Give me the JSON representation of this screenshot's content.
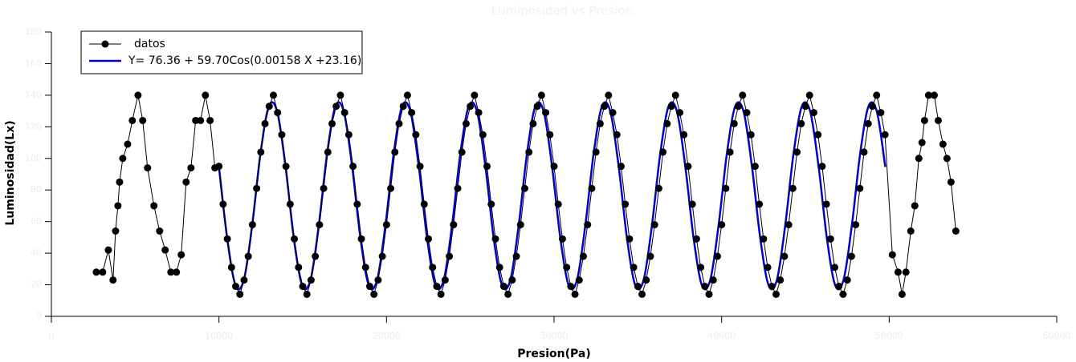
{
  "chart_data": {
    "type": "line",
    "title": "Luminosidad vs Presion",
    "x_label": "Presion(Pa)",
    "y_label": "Luminosidad(Lx)",
    "xlim": [
      0,
      60000
    ],
    "xticks": [
      0,
      10000,
      20000,
      30000,
      40000,
      50000,
      60000
    ],
    "ylim": [
      0,
      180
    ],
    "yticks": [
      0,
      20,
      40,
      60,
      80,
      100,
      120,
      140,
      160,
      180
    ],
    "legend": "upper left",
    "series": [
      {
        "name": "datos",
        "color": "#000000",
        "marker": "circle",
        "x": [
          2680,
          3060,
          3400,
          3680,
          3830,
          3970,
          4070,
          4260,
          4550,
          4830,
          5170,
          5450,
          5740,
          6120,
          6460,
          6790,
          7130,
          7460,
          7750,
          8040,
          8330,
          8610,
          8900,
          9190,
          9470,
          9760,
          10000,
          10250,
          10500,
          10750,
          11000,
          11250,
          11500,
          11750,
          12000,
          12250,
          12500,
          12750,
          13000,
          13250,
          13500,
          13750,
          14000,
          14250,
          14500,
          14750,
          15000,
          15250,
          15500,
          15750,
          16000,
          16250,
          16500,
          16750,
          17000,
          17250,
          17500,
          17750,
          18000,
          18250,
          18500,
          18750,
          19000,
          19250,
          19500,
          19750,
          20000,
          20250,
          20500,
          20750,
          21000,
          21250,
          21500,
          21750,
          22000,
          22250,
          22500,
          22750,
          23000,
          23250,
          23500,
          23750,
          24000,
          24250,
          24500,
          24750,
          25000,
          25250,
          25500,
          25750,
          26000,
          26250,
          26500,
          26750,
          27000,
          27250,
          27500,
          27750,
          28000,
          28250,
          28500,
          28750,
          29000,
          29250,
          29500,
          29750,
          30000,
          30250,
          30500,
          30750,
          31000,
          31250,
          31500,
          31750,
          32000,
          32250,
          32500,
          32750,
          33000,
          33250,
          33500,
          33750,
          34000,
          34250,
          34500,
          34750,
          35000,
          35250,
          35500,
          35750,
          36000,
          36250,
          36500,
          36750,
          37000,
          37250,
          37500,
          37750,
          38000,
          38250,
          38500,
          38750,
          39000,
          39250,
          39500,
          39750,
          40000,
          40250,
          40500,
          40750,
          41000,
          41250,
          41500,
          41750,
          42000,
          42250,
          42500,
          42750,
          43000,
          43250,
          43500,
          43750,
          44000,
          44250,
          44500,
          44750,
          45000,
          45250,
          45500,
          45750,
          46000,
          46250,
          46500,
          46750,
          47000,
          47250,
          47500,
          47750,
          48000,
          48250,
          48500,
          48750,
          49000,
          49250,
          49500,
          49750,
          50190,
          50530,
          50770,
          51000,
          51290,
          51530,
          51770,
          51960,
          52110,
          52350,
          52690,
          52930,
          53210,
          53450,
          53690,
          53980
        ],
        "values": [
          28,
          28,
          42,
          23,
          54,
          70,
          85,
          100,
          109,
          124,
          140,
          124,
          94,
          70,
          54,
          42,
          28,
          28,
          39,
          85,
          94,
          124,
          124,
          140,
          124,
          94,
          95,
          71,
          49,
          31,
          19,
          14,
          23,
          38,
          58,
          81,
          104,
          122,
          133,
          140,
          129,
          115,
          95,
          71,
          49,
          31,
          19,
          14,
          23,
          38,
          58,
          81,
          104,
          122,
          133,
          140,
          129,
          115,
          95,
          71,
          49,
          31,
          19,
          14,
          23,
          38,
          58,
          81,
          104,
          122,
          133,
          140,
          129,
          115,
          95,
          71,
          49,
          31,
          19,
          14,
          23,
          38,
          58,
          81,
          104,
          122,
          133,
          140,
          129,
          115,
          95,
          71,
          49,
          31,
          19,
          14,
          23,
          38,
          58,
          81,
          104,
          122,
          133,
          140,
          129,
          115,
          95,
          71,
          49,
          31,
          19,
          14,
          23,
          38,
          58,
          81,
          104,
          122,
          133,
          140,
          129,
          115,
          95,
          71,
          49,
          31,
          19,
          14,
          23,
          38,
          58,
          81,
          104,
          122,
          133,
          140,
          129,
          115,
          95,
          71,
          49,
          31,
          19,
          14,
          23,
          38,
          58,
          81,
          104,
          122,
          133,
          140,
          129,
          115,
          95,
          71,
          49,
          31,
          19,
          14,
          23,
          38,
          58,
          81,
          104,
          122,
          133,
          140,
          129,
          115,
          95,
          71,
          49,
          31,
          19,
          14,
          23,
          38,
          58,
          81,
          104,
          122,
          133,
          140,
          129,
          115,
          39,
          28,
          14,
          28,
          54,
          70,
          100,
          110,
          124,
          140,
          140,
          124,
          109,
          100,
          85,
          54
        ]
      },
      {
        "name": "Y= 76.36 + 59.70Cos(0.00158 X +23.16)",
        "color": "#0000cc",
        "marker": "none",
        "x": [
          10000,
          10497,
          10994,
          11491,
          11988,
          12486,
          12983,
          13480,
          13977,
          14474,
          14971,
          15468,
          15965,
          16463,
          16960,
          17457,
          17953,
          18450,
          18947,
          19444,
          19941,
          20439,
          20936,
          21433,
          21930,
          22427,
          22924,
          23421,
          23918,
          24416,
          24913,
          25410,
          25907,
          26404,
          26901,
          27398,
          27895,
          28393,
          28890,
          29387,
          29884,
          30381,
          30878,
          31375,
          31872,
          32370,
          32867,
          33364,
          33860,
          34357,
          34854,
          35351,
          35848,
          36346,
          36843,
          37340,
          37837,
          38334,
          38831,
          39328,
          39825,
          40323,
          40820,
          41317,
          41814,
          42311,
          42808,
          43305,
          43802,
          44300,
          44797,
          45294,
          45791,
          46288,
          46785,
          47282,
          47779,
          48277,
          48774,
          49271,
          49767
        ],
        "values": [
          94.57,
          49.02,
          19.53,
          23.29,
          58.15,
          103.7,
          133.19,
          129.43,
          94.57,
          49.02,
          19.53,
          23.29,
          58.15,
          103.7,
          133.19,
          129.43,
          94.57,
          49.02,
          19.53,
          23.29,
          58.15,
          103.7,
          133.19,
          129.43,
          94.57,
          49.02,
          19.53,
          23.29,
          58.15,
          103.7,
          133.19,
          129.43,
          94.57,
          49.02,
          19.53,
          23.29,
          58.15,
          103.7,
          133.19,
          129.43,
          94.57,
          49.02,
          19.53,
          23.29,
          58.15,
          103.7,
          133.19,
          129.43,
          94.57,
          49.02,
          19.53,
          23.29,
          58.15,
          103.7,
          133.19,
          129.43,
          94.57,
          49.02,
          19.53,
          23.29,
          58.15,
          103.7,
          133.19,
          129.43,
          94.57,
          49.02,
          19.53,
          23.29,
          58.15,
          103.7,
          133.19,
          129.43,
          94.57,
          49.02,
          19.53,
          23.29,
          58.15,
          103.7,
          133.19,
          129.43,
          94.57
        ]
      }
    ]
  }
}
